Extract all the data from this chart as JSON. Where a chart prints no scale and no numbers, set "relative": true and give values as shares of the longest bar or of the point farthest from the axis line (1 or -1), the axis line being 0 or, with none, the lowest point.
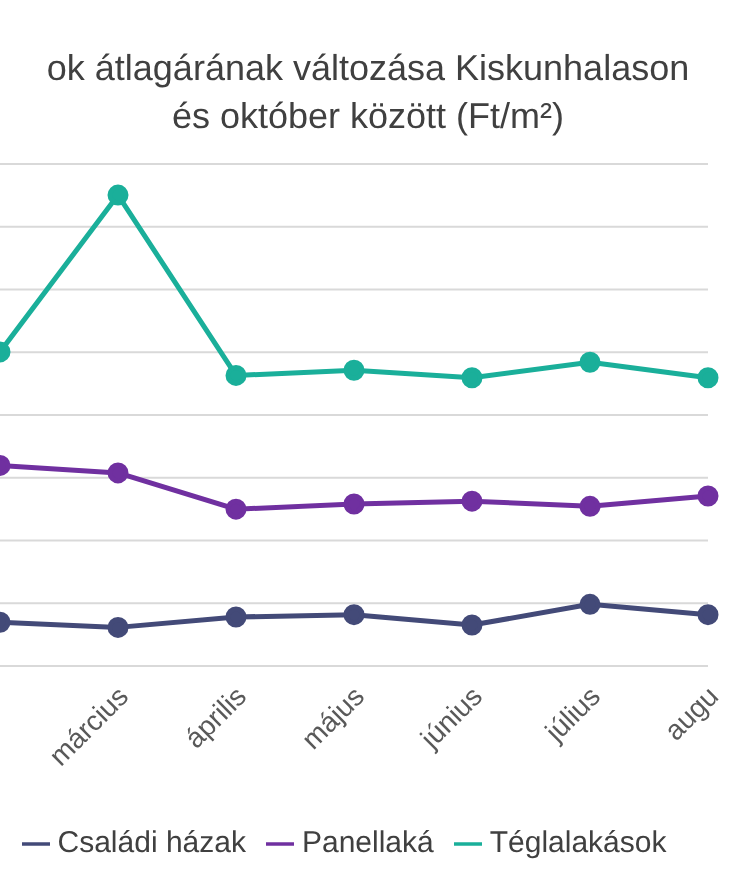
{
  "chart_data": {
    "type": "line",
    "title": "ok átlagárának változása Kiskunhalason\nés október között (Ft/m²)",
    "categories": [
      null,
      "március",
      "április",
      "május",
      "június",
      "július",
      "augu"
    ],
    "relative": true,
    "grid": "y",
    "legend": "bottom",
    "marker": "circle",
    "line_style": "solid",
    "series": [
      {
        "name": "Családi házak",
        "color": "#434a78",
        "values": [
          0.093,
          0.082,
          0.104,
          0.109,
          0.087,
          0.131,
          0.109
        ]
      },
      {
        "name": "Téglalakások",
        "color": "#1aaf9a",
        "values": [
          0.667,
          1.0,
          0.617,
          0.628,
          0.612,
          0.645,
          0.612
        ]
      },
      {
        "name": "Panellaká",
        "color": "#7030a0",
        "values": [
          0.426,
          0.41,
          0.333,
          0.344,
          0.35,
          0.339,
          0.361
        ]
      }
    ]
  }
}
